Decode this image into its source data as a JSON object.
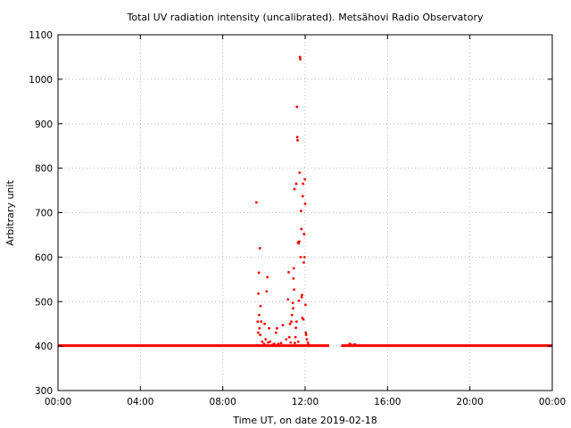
{
  "chart_data": {
    "type": "scatter",
    "title": "Total UV radiation intensity (uncalibrated). Metsähovi Radio Observatory",
    "xlabel": "Time UT, on date 2019-02-18",
    "ylabel": "Arbitrary unit",
    "xlim": [
      "00:00",
      "24:00"
    ],
    "ylim": [
      300,
      1100
    ],
    "x_ticks": [
      "00:00",
      "04:00",
      "08:00",
      "12:00",
      "16:00",
      "20:00",
      "00:00"
    ],
    "y_ticks": [
      300,
      400,
      500,
      600,
      700,
      800,
      900,
      1000,
      1100
    ],
    "grid": true,
    "marker_color": "#ff0000",
    "baseline_segments": [
      {
        "start": "00:00",
        "end": "13:10",
        "value": 401
      },
      {
        "start": "13:45",
        "end": "24:00",
        "value": 401
      }
    ],
    "points": [
      [
        "09:38",
        723
      ],
      [
        "09:40",
        402
      ],
      [
        "09:42",
        455
      ],
      [
        "09:43",
        430
      ],
      [
        "09:44",
        518
      ],
      [
        "09:45",
        565
      ],
      [
        "09:46",
        470
      ],
      [
        "09:47",
        440
      ],
      [
        "09:48",
        620
      ],
      [
        "09:49",
        425
      ],
      [
        "09:50",
        490
      ],
      [
        "09:52",
        455
      ],
      [
        "09:55",
        410
      ],
      [
        "10:00",
        405
      ],
      [
        "10:02",
        450
      ],
      [
        "10:05",
        415
      ],
      [
        "10:08",
        523
      ],
      [
        "10:10",
        555
      ],
      [
        "10:12",
        408
      ],
      [
        "10:15",
        440
      ],
      [
        "10:18",
        410
      ],
      [
        "10:25",
        403
      ],
      [
        "10:30",
        405
      ],
      [
        "10:35",
        430
      ],
      [
        "10:38",
        440
      ],
      [
        "10:42",
        405
      ],
      [
        "10:50",
        407
      ],
      [
        "10:55",
        447
      ],
      [
        "11:05",
        415
      ],
      [
        "11:10",
        505
      ],
      [
        "11:12",
        566
      ],
      [
        "11:14",
        420
      ],
      [
        "11:16",
        450
      ],
      [
        "11:18",
        408
      ],
      [
        "11:20",
        455
      ],
      [
        "11:22",
        470
      ],
      [
        "11:24",
        497
      ],
      [
        "11:25",
        485
      ],
      [
        "11:26",
        552
      ],
      [
        "11:27",
        575
      ],
      [
        "11:28",
        527
      ],
      [
        "11:29",
        753
      ],
      [
        "11:30",
        407
      ],
      [
        "11:32",
        420
      ],
      [
        "11:33",
        441
      ],
      [
        "11:34",
        765
      ],
      [
        "11:35",
        455
      ],
      [
        "11:36",
        938
      ],
      [
        "11:37",
        870
      ],
      [
        "11:38",
        863
      ],
      [
        "11:39",
        633
      ],
      [
        "11:40",
        410
      ],
      [
        "11:41",
        631
      ],
      [
        "11:42",
        502
      ],
      [
        "11:43",
        635
      ],
      [
        "11:44",
        790
      ],
      [
        "11:45",
        1050
      ],
      [
        "11:46",
        1045
      ],
      [
        "11:47",
        600
      ],
      [
        "11:48",
        704
      ],
      [
        "11:49",
        663
      ],
      [
        "11:50",
        510
      ],
      [
        "11:51",
        515
      ],
      [
        "11:52",
        463
      ],
      [
        "11:53",
        737
      ],
      [
        "11:54",
        765
      ],
      [
        "11:55",
        460
      ],
      [
        "11:56",
        588
      ],
      [
        "11:57",
        652
      ],
      [
        "11:58",
        600
      ],
      [
        "11:59",
        775
      ],
      [
        "12:00",
        720
      ],
      [
        "12:01",
        493
      ],
      [
        "12:02",
        430
      ],
      [
        "12:03",
        425
      ],
      [
        "12:05",
        415
      ],
      [
        "12:08",
        408
      ],
      [
        "12:10",
        403
      ],
      [
        "14:10",
        405
      ],
      [
        "14:15",
        403
      ],
      [
        "14:20",
        402
      ],
      [
        "14:25",
        404
      ]
    ]
  }
}
